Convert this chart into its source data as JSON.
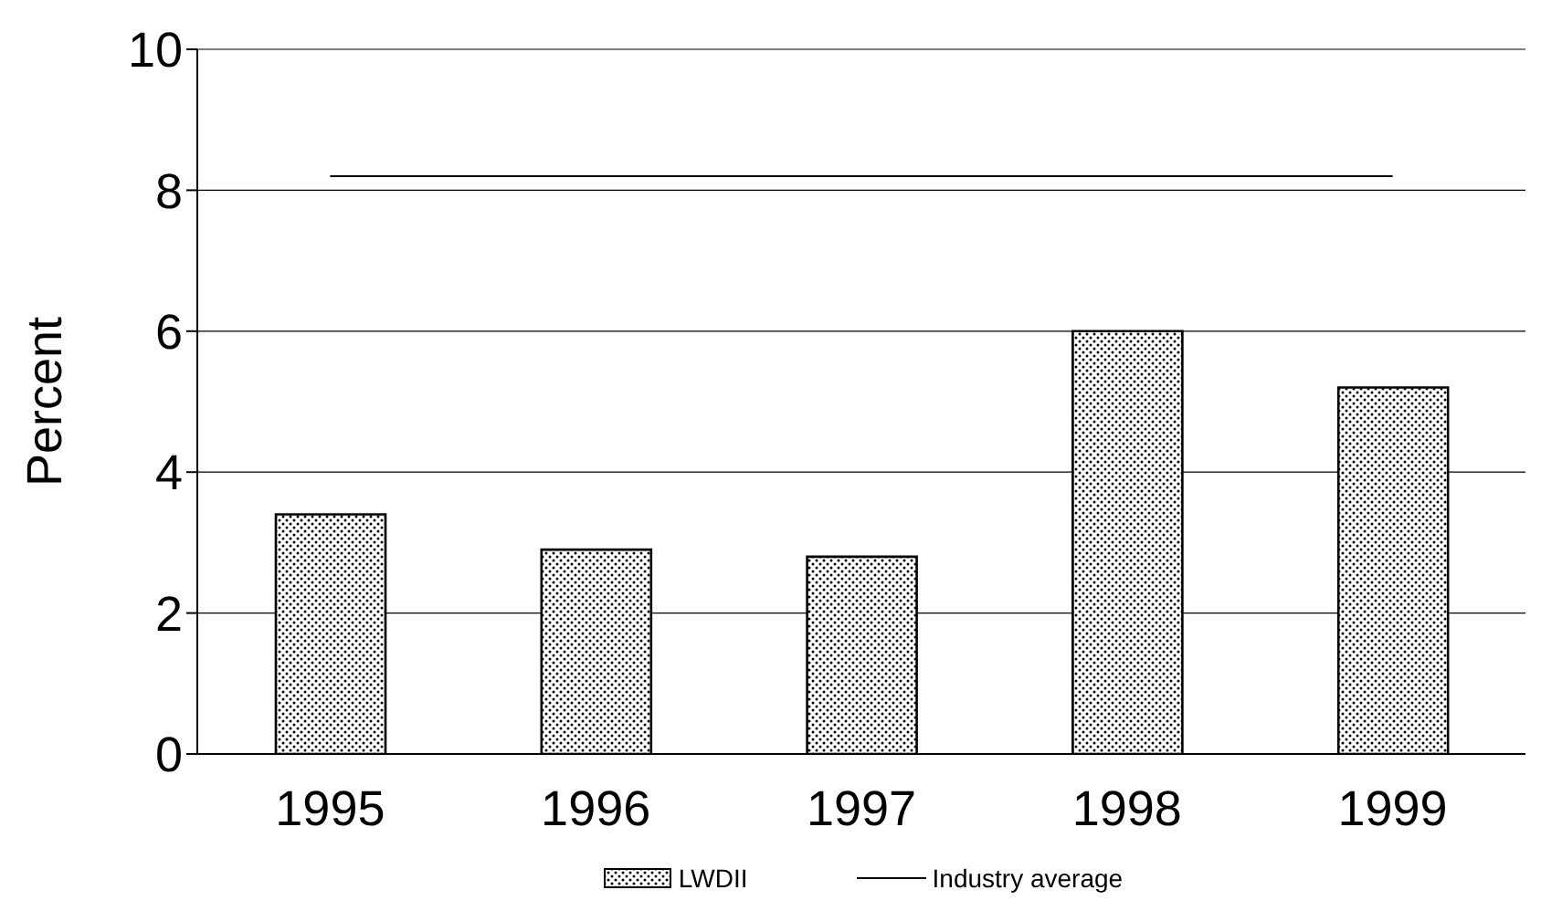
{
  "chart_data": {
    "type": "bar",
    "ylabel": "Percent",
    "categories": [
      "1995",
      "1996",
      "1997",
      "1998",
      "1999"
    ],
    "series": [
      {
        "name": "LWDII",
        "color": "#000000",
        "values": [
          3.4,
          2.9,
          2.8,
          6.0,
          5.2
        ]
      },
      {
        "name": "Industry average",
        "type": "line",
        "color": "#000000",
        "values": [
          8.2,
          8.2,
          8.2,
          8.2,
          8.2
        ]
      }
    ],
    "ylim": [
      0,
      10
    ],
    "yticks": [
      0,
      2,
      4,
      6,
      8,
      10
    ],
    "grid": "y",
    "legend": "bottom",
    "marker": "none"
  }
}
